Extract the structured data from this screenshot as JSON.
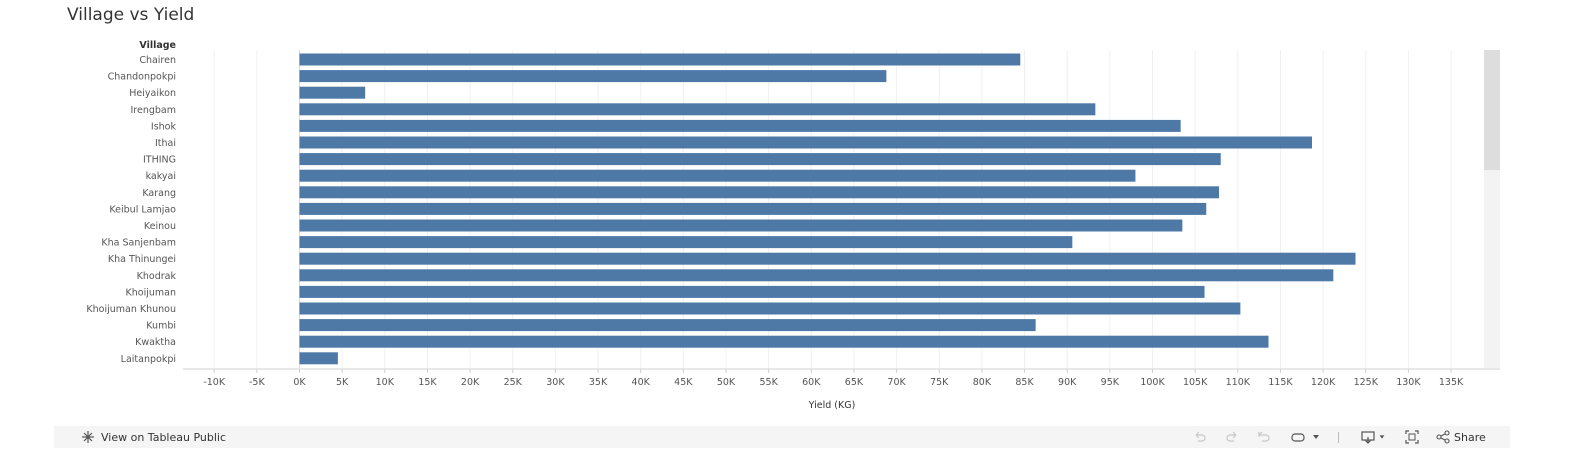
{
  "title": "Village vs Yield",
  "chart_data": {
    "type": "bar",
    "orientation": "horizontal",
    "title": "Village vs Yield",
    "category_header": "Village",
    "categories": [
      "Chairen",
      "Chandonpokpi",
      "Heiyaikon",
      "Irengbam",
      "Ishok",
      "Ithai",
      "ITHING",
      "kakyai",
      "Karang",
      "Keibul Lamjao",
      "Keinou",
      "Kha Sanjenbam",
      "Kha Thinungei",
      "Khodrak",
      "Khoijuman",
      "Khoijuman Khunou",
      "Kumbi",
      "Kwaktha",
      "Laitanpokpi"
    ],
    "values": [
      84500,
      68800,
      7700,
      93300,
      103300,
      118700,
      108000,
      98000,
      107800,
      106300,
      103500,
      90600,
      123800,
      121200,
      106100,
      110300,
      86300,
      113600,
      4500
    ],
    "xlabel": "Yield (KG)",
    "ylabel": "Village",
    "xlim": [
      -15000,
      140000
    ],
    "xticks": [
      -10000,
      -5000,
      0,
      5000,
      10000,
      15000,
      20000,
      25000,
      30000,
      35000,
      40000,
      45000,
      50000,
      55000,
      60000,
      65000,
      70000,
      75000,
      80000,
      85000,
      90000,
      95000,
      100000,
      105000,
      110000,
      115000,
      120000,
      125000,
      130000,
      135000
    ],
    "xtick_labels": [
      "-10K",
      "-5K",
      "0K",
      "5K",
      "10K",
      "15K",
      "20K",
      "25K",
      "30K",
      "35K",
      "40K",
      "45K",
      "50K",
      "55K",
      "60K",
      "65K",
      "70K",
      "75K",
      "80K",
      "85K",
      "90K",
      "95K",
      "100K",
      "105K",
      "110K",
      "115K",
      "120K",
      "125K",
      "130K",
      "135K"
    ],
    "grid": true,
    "bar_color": "#4e79a7"
  },
  "toolbar": {
    "view_label": "View on Tableau Public",
    "share_label": "Share"
  },
  "colors": {
    "bar": "#4e79a7",
    "grid": "#eeeeee",
    "text": "#555555",
    "toolbar_bg": "#f5f5f5"
  },
  "icons": {
    "view": "tableau-logo-icon",
    "undo": "undo-icon",
    "redo": "redo-icon",
    "revert": "revert-icon",
    "refresh": "refresh-icon",
    "pause": "chevron-down-icon",
    "download": "download-icon",
    "fullscreen": "fullscreen-icon",
    "share": "share-icon"
  }
}
